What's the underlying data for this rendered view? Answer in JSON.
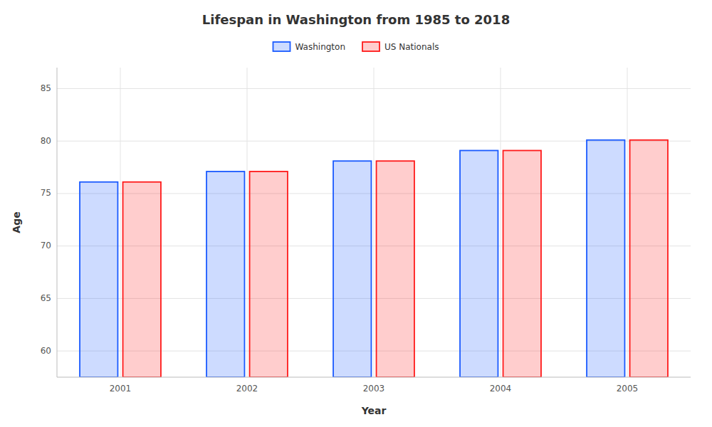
{
  "chart_data": {
    "type": "bar",
    "title": "Lifespan in Washington from 1985 to 2018",
    "xlabel": "Year",
    "ylabel": "Age",
    "categories": [
      "2001",
      "2002",
      "2003",
      "2004",
      "2005"
    ],
    "series": [
      {
        "name": "Washington",
        "color": "#1a5aff",
        "values": [
          76.1,
          77.1,
          78.1,
          79.1,
          80.1
        ]
      },
      {
        "name": "US Nationals",
        "color": "#ff1a1a",
        "values": [
          76.1,
          77.1,
          78.1,
          79.1,
          80.1
        ]
      }
    ],
    "ylim": [
      57.5,
      87
    ],
    "yticks": [
      60,
      65,
      70,
      75,
      80,
      85
    ],
    "grid": true,
    "legend": "top"
  }
}
